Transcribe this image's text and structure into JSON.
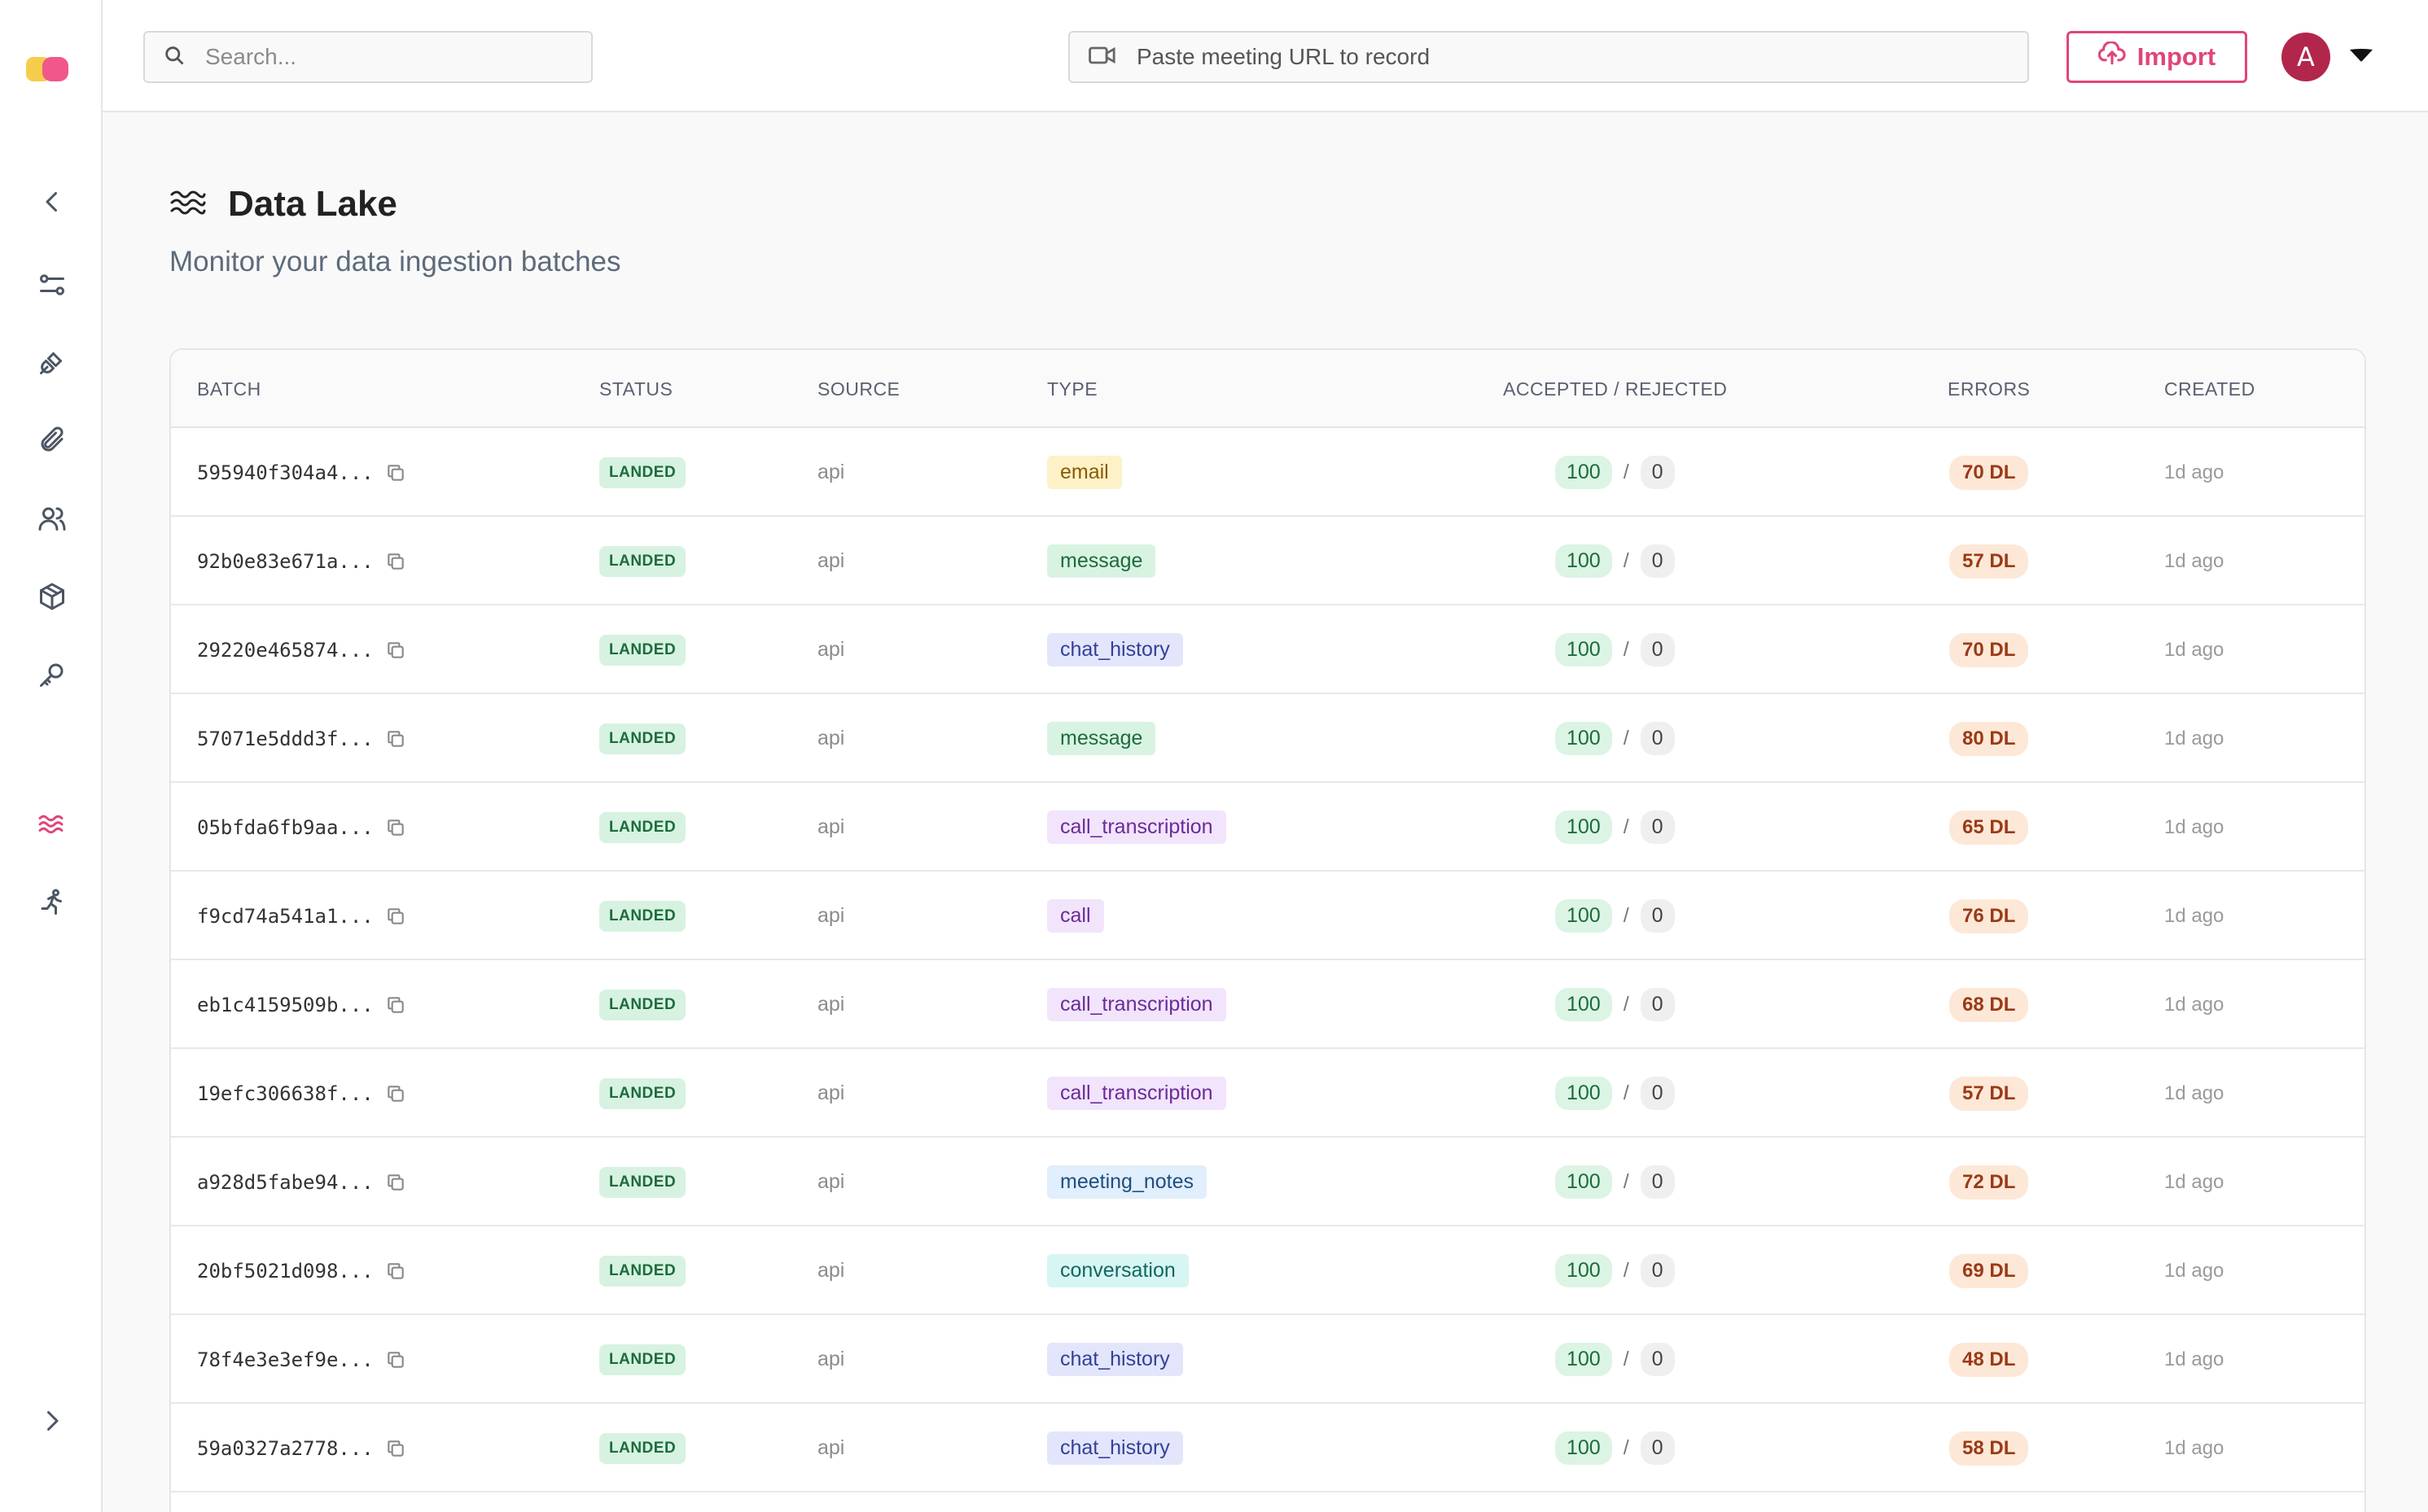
{
  "topbar": {
    "search_placeholder": "Search...",
    "record_placeholder": "Paste meeting URL to record",
    "import_label": "Import",
    "avatar_initial": "A"
  },
  "page": {
    "title": "Data Lake",
    "subtitle": "Monitor your data ingestion batches"
  },
  "table": {
    "headers": {
      "batch": "BATCH",
      "status": "STATUS",
      "source": "SOURCE",
      "type": "TYPE",
      "accepted_rejected": "ACCEPTED / REJECTED",
      "errors": "ERRORS",
      "created": "CREATED"
    },
    "rows": [
      {
        "batch": "595940f304a4...",
        "status": "LANDED",
        "source": "api",
        "type": "email",
        "type_bg": "#fdf1c7",
        "type_fg": "#8a5a00",
        "accepted": "100",
        "rejected": "0",
        "errors": "70 DL",
        "created": "1d ago"
      },
      {
        "batch": "92b0e83e671a...",
        "status": "LANDED",
        "source": "api",
        "type": "message",
        "type_bg": "#d9f3e2",
        "type_fg": "#1d6b3e",
        "accepted": "100",
        "rejected": "0",
        "errors": "57 DL",
        "created": "1d ago"
      },
      {
        "batch": "29220e465874...",
        "status": "LANDED",
        "source": "api",
        "type": "chat_history",
        "type_bg": "#e3e6fb",
        "type_fg": "#33409a",
        "accepted": "100",
        "rejected": "0",
        "errors": "70 DL",
        "created": "1d ago"
      },
      {
        "batch": "57071e5ddd3f...",
        "status": "LANDED",
        "source": "api",
        "type": "message",
        "type_bg": "#d9f3e2",
        "type_fg": "#1d6b3e",
        "accepted": "100",
        "rejected": "0",
        "errors": "80 DL",
        "created": "1d ago"
      },
      {
        "batch": "05bfda6fb9aa...",
        "status": "LANDED",
        "source": "api",
        "type": "call_transcription",
        "type_bg": "#f1e4fb",
        "type_fg": "#6b2b9a",
        "accepted": "100",
        "rejected": "0",
        "errors": "65 DL",
        "created": "1d ago"
      },
      {
        "batch": "f9cd74a541a1...",
        "status": "LANDED",
        "source": "api",
        "type": "call",
        "type_bg": "#f1e4fb",
        "type_fg": "#6b2b9a",
        "accepted": "100",
        "rejected": "0",
        "errors": "76 DL",
        "created": "1d ago"
      },
      {
        "batch": "eb1c4159509b...",
        "status": "LANDED",
        "source": "api",
        "type": "call_transcription",
        "type_bg": "#f1e4fb",
        "type_fg": "#6b2b9a",
        "accepted": "100",
        "rejected": "0",
        "errors": "68 DL",
        "created": "1d ago"
      },
      {
        "batch": "19efc306638f...",
        "status": "LANDED",
        "source": "api",
        "type": "call_transcription",
        "type_bg": "#f1e4fb",
        "type_fg": "#6b2b9a",
        "accepted": "100",
        "rejected": "0",
        "errors": "57 DL",
        "created": "1d ago"
      },
      {
        "batch": "a928d5fabe94...",
        "status": "LANDED",
        "source": "api",
        "type": "meeting_notes",
        "type_bg": "#e1eefb",
        "type_fg": "#1f4f80",
        "accepted": "100",
        "rejected": "0",
        "errors": "72 DL",
        "created": "1d ago"
      },
      {
        "batch": "20bf5021d098...",
        "status": "LANDED",
        "source": "api",
        "type": "conversation",
        "type_bg": "#d7f5f3",
        "type_fg": "#12685f",
        "accepted": "100",
        "rejected": "0",
        "errors": "69 DL",
        "created": "1d ago"
      },
      {
        "batch": "78f4e3e3ef9e...",
        "status": "LANDED",
        "source": "api",
        "type": "chat_history",
        "type_bg": "#e3e6fb",
        "type_fg": "#33409a",
        "accepted": "100",
        "rejected": "0",
        "errors": "48 DL",
        "created": "1d ago"
      },
      {
        "batch": "59a0327a2778...",
        "status": "LANDED",
        "source": "api",
        "type": "chat_history",
        "type_bg": "#e3e6fb",
        "type_fg": "#33409a",
        "accepted": "100",
        "rejected": "0",
        "errors": "58 DL",
        "created": "1d ago"
      }
    ]
  },
  "sidebar": {
    "icons": [
      "collapse-left-icon",
      "sliders-icon",
      "plug-icon",
      "paperclip-icon",
      "users-icon",
      "cube-icon",
      "key-icon",
      "waves-icon",
      "runner-icon",
      "expand-right-icon"
    ],
    "active": "waves-icon"
  },
  "colors": {
    "accent": "#e0457b",
    "logo_yellow": "#f6cd4b",
    "logo_pink": "#f0578a",
    "avatar": "#b3264c"
  }
}
